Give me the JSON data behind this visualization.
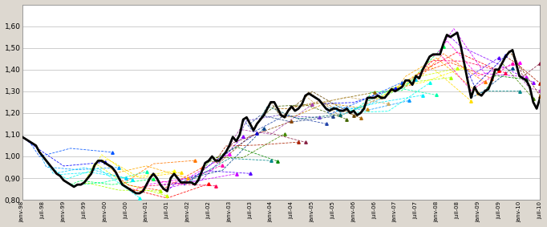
{
  "ylim": [
    0.8,
    1.7
  ],
  "ytick_vals": [
    0.8,
    0.9,
    1.0,
    1.1,
    1.2,
    1.3,
    1.4,
    1.5,
    1.6
  ],
  "ytick_labels": [
    "0,80",
    "0,90",
    "1,00",
    "1,10",
    "1,20",
    "1,30",
    "1,40",
    "1,50",
    "1,60"
  ],
  "xtick_labels": [
    "janv-98",
    "juil-98",
    "janv-99",
    "juil-99",
    "janv-00",
    "juil-00",
    "janv-01",
    "juil-01",
    "janv-02",
    "juil-02",
    "janv-03",
    "juil-03",
    "janv-04",
    "juil-04",
    "janv-05",
    "juil-05",
    "janv-06",
    "juil-06",
    "janv-07",
    "juil-07",
    "janv-08",
    "juil-08",
    "janv-09",
    "juil-09",
    "janv-10",
    "juil-10"
  ],
  "fig_bg": "#ddd8d0",
  "plot_bg": "#ffffff",
  "actual_eurusd": [
    1.09,
    1.08,
    1.07,
    1.06,
    1.05,
    1.02,
    1.0,
    0.98,
    0.96,
    0.94,
    0.92,
    0.91,
    0.89,
    0.88,
    0.87,
    0.86,
    0.87,
    0.87,
    0.88,
    0.9,
    0.92,
    0.96,
    0.98,
    0.98,
    0.97,
    0.96,
    0.95,
    0.93,
    0.9,
    0.87,
    0.86,
    0.85,
    0.84,
    0.83,
    0.83,
    0.84,
    0.87,
    0.9,
    0.92,
    0.9,
    0.87,
    0.85,
    0.84,
    0.9,
    0.92,
    0.9,
    0.88,
    0.88,
    0.88,
    0.88,
    0.87,
    0.89,
    0.93,
    0.97,
    0.98,
    1.0,
    0.98,
    0.98,
    1.0,
    1.02,
    1.05,
    1.09,
    1.07,
    1.1,
    1.17,
    1.18,
    1.15,
    1.12,
    1.15,
    1.17,
    1.19,
    1.22,
    1.25,
    1.25,
    1.22,
    1.19,
    1.18,
    1.21,
    1.23,
    1.21,
    1.22,
    1.24,
    1.28,
    1.29,
    1.28,
    1.27,
    1.26,
    1.24,
    1.22,
    1.21,
    1.22,
    1.22,
    1.21,
    1.21,
    1.22,
    1.2,
    1.21,
    1.19,
    1.2,
    1.22,
    1.27,
    1.27,
    1.27,
    1.28,
    1.27,
    1.27,
    1.29,
    1.31,
    1.3,
    1.31,
    1.32,
    1.35,
    1.35,
    1.33,
    1.37,
    1.36,
    1.4,
    1.43,
    1.46,
    1.47,
    1.47,
    1.47,
    1.52,
    1.56,
    1.55,
    1.56,
    1.57,
    1.51,
    1.43,
    1.35,
    1.27,
    1.32,
    1.29,
    1.28,
    1.3,
    1.31,
    1.35,
    1.4,
    1.4,
    1.43,
    1.46,
    1.48,
    1.49,
    1.43,
    1.37,
    1.36,
    1.35,
    1.32,
    1.25,
    1.22,
    1.27
  ],
  "forecast_colors": [
    "#0000ff",
    "#0055ff",
    "#0099ff",
    "#00ccff",
    "#00eeff",
    "#00ffee",
    "#00ffaa",
    "#00ff55",
    "#aaff00",
    "#ccff00",
    "#ffff00",
    "#ffdd00",
    "#ffaa00",
    "#ff7700",
    "#ff4400",
    "#ff0000",
    "#ff0055",
    "#ff00aa",
    "#ff00ff",
    "#cc00ff",
    "#8800ff",
    "#5500ff",
    "#0000cc",
    "#004488",
    "#008888",
    "#008800",
    "#448800",
    "#884400",
    "#aa2200",
    "#882244",
    "#aa44aa",
    "#6644cc",
    "#2244aa",
    "#224488",
    "#006666",
    "#446600",
    "#664400",
    "#aa6600",
    "#cc8800",
    "#886600",
    "#aa8844",
    "#ccaa66"
  ]
}
